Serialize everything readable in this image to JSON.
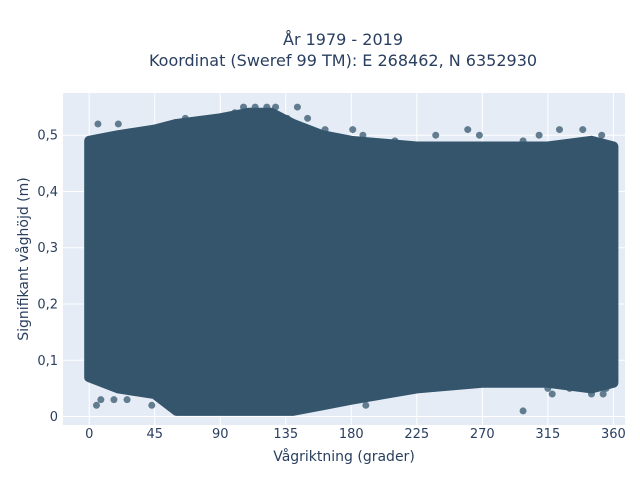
{
  "chart_data": {
    "type": "scatter",
    "title_line1": "År 1979 - 2019",
    "title_line2": "Koordinat (Sweref 99 TM): E 268462, N 6352930",
    "xlabel": "Vågriktning (grader)",
    "ylabel": "Signifikant våghöjd (m)",
    "xlim": [
      -18,
      368
    ],
    "ylim": [
      -0.015,
      0.575
    ],
    "x_ticks": [
      0,
      45,
      90,
      135,
      180,
      225,
      270,
      315,
      360
    ],
    "x_tick_labels": [
      "0",
      "45",
      "90",
      "135",
      "180",
      "225",
      "270",
      "315",
      "360"
    ],
    "y_ticks": [
      0,
      0.1,
      0.2,
      0.3,
      0.4,
      0.5
    ],
    "y_tick_labels": [
      "0",
      "0,1",
      "0,2",
      "0,3",
      "0,4",
      "0,5"
    ],
    "grid": true,
    "marker_color": "#34556c",
    "band": [
      {
        "x": 0,
        "low": 0.07,
        "high": 0.49
      },
      {
        "x": 20,
        "low": 0.05,
        "high": 0.5
      },
      {
        "x": 45,
        "low": 0.04,
        "high": 0.51
      },
      {
        "x": 60,
        "low": 0.01,
        "high": 0.52
      },
      {
        "x": 90,
        "low": 0.01,
        "high": 0.53
      },
      {
        "x": 110,
        "low": 0.01,
        "high": 0.54
      },
      {
        "x": 125,
        "low": 0.01,
        "high": 0.54
      },
      {
        "x": 140,
        "low": 0.01,
        "high": 0.52
      },
      {
        "x": 160,
        "low": 0.02,
        "high": 0.5
      },
      {
        "x": 180,
        "low": 0.03,
        "high": 0.49
      },
      {
        "x": 225,
        "low": 0.05,
        "high": 0.48
      },
      {
        "x": 270,
        "low": 0.06,
        "high": 0.48
      },
      {
        "x": 315,
        "low": 0.06,
        "high": 0.48
      },
      {
        "x": 345,
        "low": 0.05,
        "high": 0.49
      },
      {
        "x": 360,
        "low": 0.06,
        "high": 0.48
      }
    ],
    "outliers": [
      {
        "x": 6,
        "y": 0.52
      },
      {
        "x": 20,
        "y": 0.52
      },
      {
        "x": 5,
        "y": 0.02
      },
      {
        "x": 8,
        "y": 0.03
      },
      {
        "x": 17,
        "y": 0.03
      },
      {
        "x": 26,
        "y": 0.03
      },
      {
        "x": 43,
        "y": 0.02
      },
      {
        "x": 66,
        "y": 0.53
      },
      {
        "x": 85,
        "y": 0.53
      },
      {
        "x": 96,
        "y": 0.53
      },
      {
        "x": 100,
        "y": 0.54
      },
      {
        "x": 106,
        "y": 0.55
      },
      {
        "x": 114,
        "y": 0.55
      },
      {
        "x": 122,
        "y": 0.55
      },
      {
        "x": 128,
        "y": 0.55
      },
      {
        "x": 136,
        "y": 0.53
      },
      {
        "x": 143,
        "y": 0.55
      },
      {
        "x": 150,
        "y": 0.53
      },
      {
        "x": 162,
        "y": 0.51
      },
      {
        "x": 181,
        "y": 0.51
      },
      {
        "x": 188,
        "y": 0.5
      },
      {
        "x": 210,
        "y": 0.49
      },
      {
        "x": 238,
        "y": 0.5
      },
      {
        "x": 260,
        "y": 0.51
      },
      {
        "x": 268,
        "y": 0.5
      },
      {
        "x": 298,
        "y": 0.49
      },
      {
        "x": 309,
        "y": 0.5
      },
      {
        "x": 323,
        "y": 0.51
      },
      {
        "x": 339,
        "y": 0.51
      },
      {
        "x": 352,
        "y": 0.5
      },
      {
        "x": 190,
        "y": 0.02
      },
      {
        "x": 298,
        "y": 0.01
      },
      {
        "x": 315,
        "y": 0.05
      },
      {
        "x": 318,
        "y": 0.04
      },
      {
        "x": 345,
        "y": 0.04
      },
      {
        "x": 353,
        "y": 0.04
      },
      {
        "x": 330,
        "y": 0.05
      },
      {
        "x": 355,
        "y": 0.05
      },
      {
        "x": 140,
        "y": 0.01
      }
    ]
  }
}
